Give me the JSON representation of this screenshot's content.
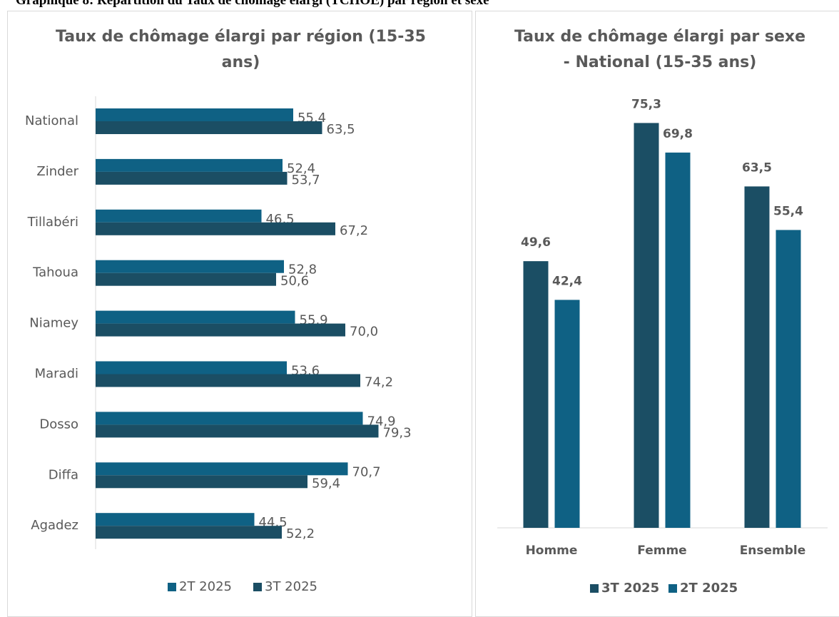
{
  "header": {
    "title": "Graphique 8: Répartition du Taux de chômage élargi (TCHOE) par région et sexe"
  },
  "chart_data": [
    {
      "type": "barh",
      "title": "Taux de chômage élargi par région (15-35 ans)",
      "categories": [
        "National",
        "Zinder",
        "Tillabéri",
        "Tahoua",
        "Niamey",
        "Maradi",
        "Dosso",
        "Diffa",
        "Agadez"
      ],
      "series": [
        {
          "name": "2T 2025",
          "color": "#0f6184",
          "values": [
            55.4,
            52.4,
            46.5,
            52.8,
            55.9,
            53.6,
            74.9,
            70.7,
            44.5
          ],
          "value_labels": [
            "55,4",
            "52,4",
            "46,5",
            "52,8",
            "55,9",
            "53,6",
            "74,9",
            "70,7",
            "44,5"
          ]
        },
        {
          "name": "3T 2025",
          "color": "#1b4e64",
          "values": [
            63.5,
            53.7,
            67.2,
            50.6,
            70.0,
            74.2,
            79.3,
            59.4,
            52.2
          ],
          "value_labels": [
            "63,5",
            "53,7",
            "67,2",
            "50,6",
            "70,0",
            "74,2",
            "79,3",
            "59,4",
            "52,2"
          ]
        }
      ],
      "xlim": [
        0,
        100
      ],
      "legend": "bottom"
    },
    {
      "type": "bar",
      "title": "Taux de chômage élargi par sexe - National (15-35 ans)",
      "categories": [
        "Homme",
        "Femme",
        "Ensemble"
      ],
      "series": [
        {
          "name": "3T 2025",
          "color": "#1b4e64",
          "values": [
            49.6,
            75.3,
            63.5
          ],
          "value_labels": [
            "49,6",
            "75,3",
            "63,5"
          ]
        },
        {
          "name": "2T 2025",
          "color": "#0f6184",
          "values": [
            42.4,
            69.8,
            55.4
          ],
          "value_labels": [
            "42,4",
            "69,8",
            "55,4"
          ]
        }
      ],
      "ylim": [
        0,
        80
      ],
      "legend": "bottom"
    }
  ]
}
